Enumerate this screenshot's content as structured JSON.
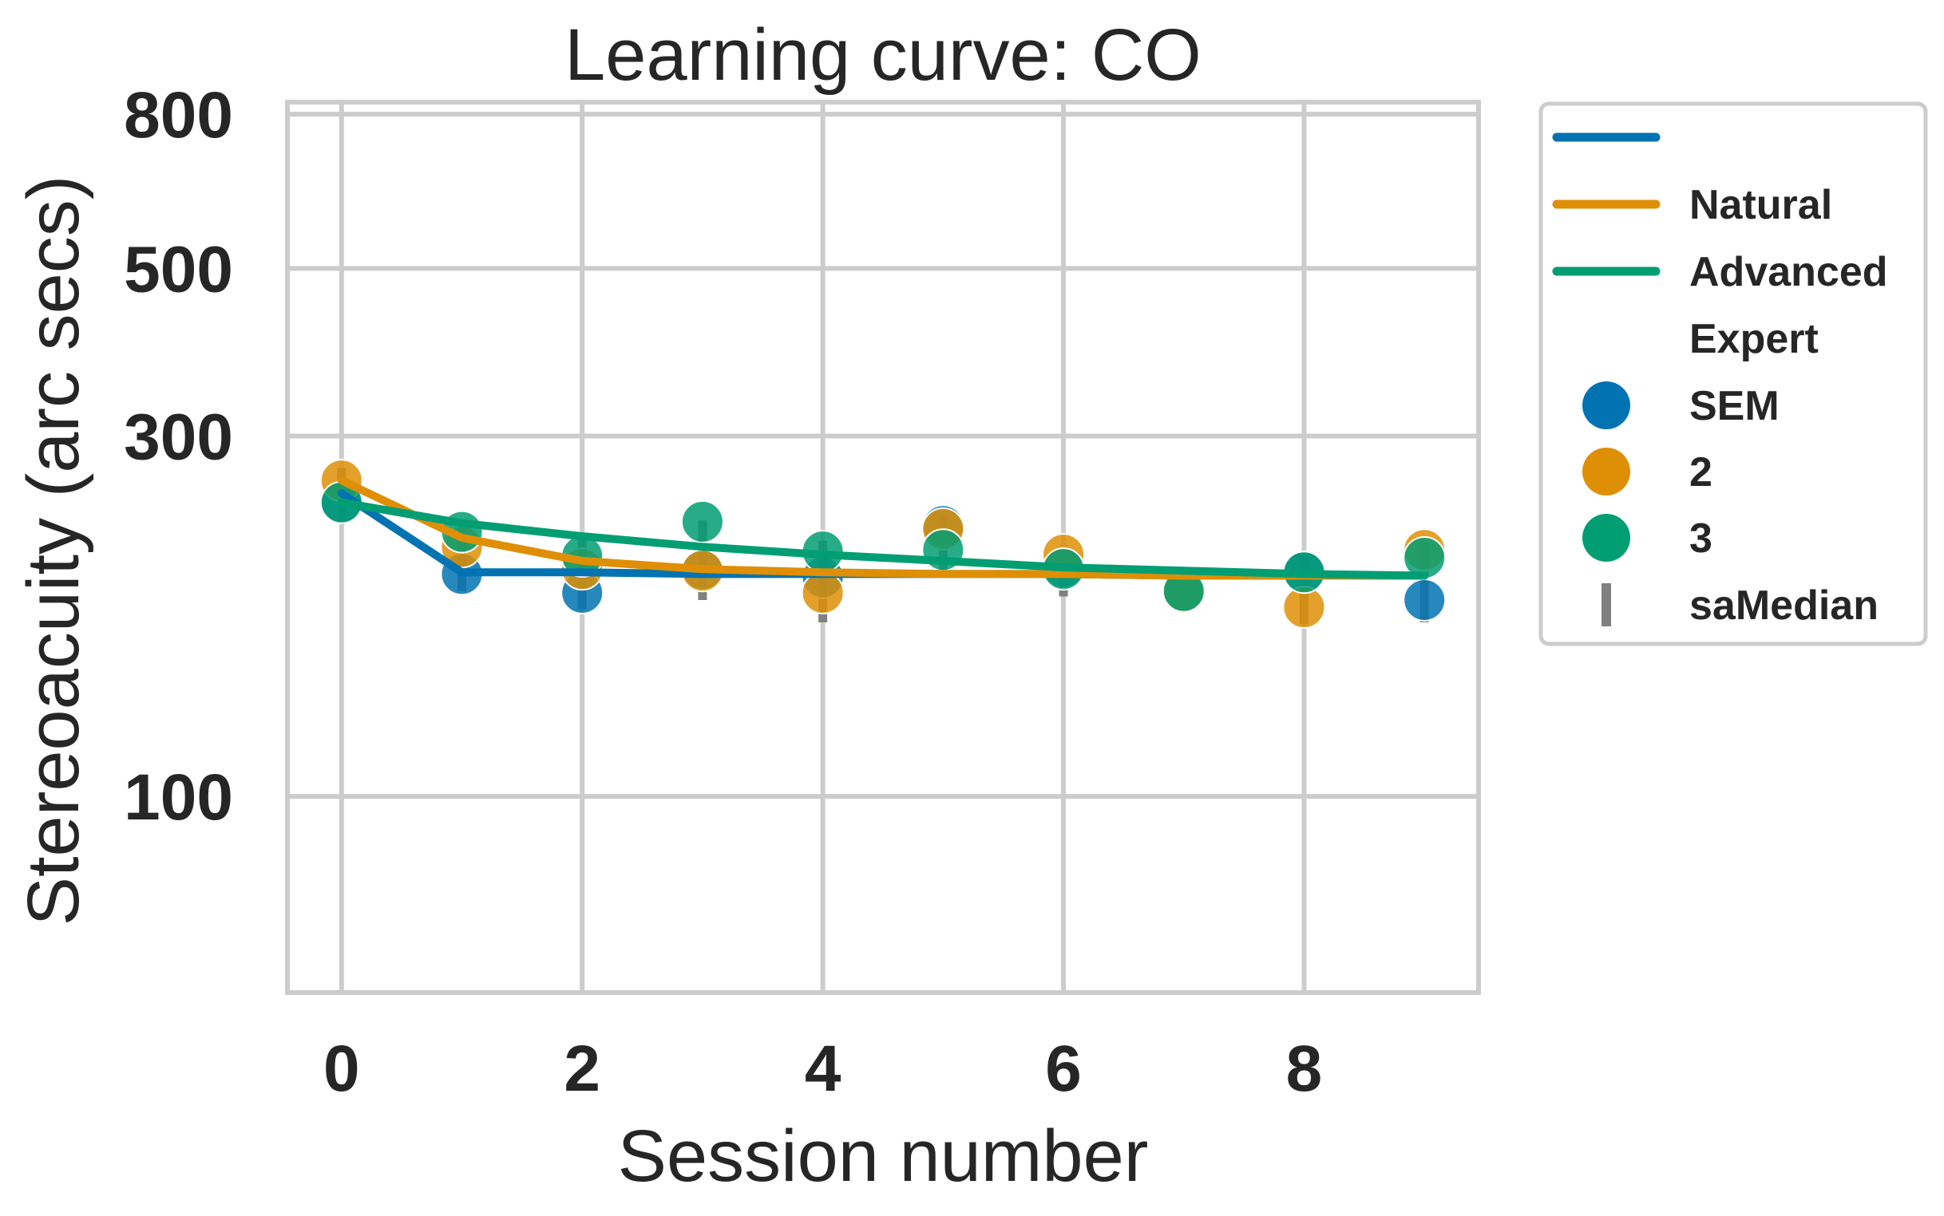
{
  "chart_data": {
    "type": "line",
    "title": "Learning curve: CO",
    "xlabel": "Session number",
    "ylabel": "Stereoacuity (arc secs)",
    "x_ticks": [
      0,
      2,
      4,
      6,
      8
    ],
    "x_tick_labels": [
      "0",
      "2",
      "4",
      "6",
      "8"
    ],
    "xlim": [
      -0.45,
      9.45
    ],
    "y_scale": "log",
    "ylim": [
      55,
      830
    ],
    "y_ticks": [
      100,
      300,
      500,
      800
    ],
    "y_tick_labels": [
      "100",
      "300",
      "500",
      "800"
    ],
    "grid": true,
    "legend_position": "outside-right",
    "legend": {
      "line_header": "",
      "lines": [
        {
          "label": "Natural",
          "color": "#de8f05"
        },
        {
          "label": "Advanced",
          "color": "#029e73"
        }
      ],
      "marker_header": "Expert",
      "markers": [
        {
          "label": "SEM",
          "color": "#0173b2"
        },
        {
          "label": "2",
          "color": "#de8f05"
        },
        {
          "label": "3",
          "color": "#029e73"
        }
      ],
      "errorbar_label": "saMedian",
      "errorbar_color": "#808080"
    },
    "x": [
      0,
      1,
      2,
      3,
      4,
      5,
      6,
      7,
      8,
      9
    ],
    "series": [
      {
        "color": "#0173b2",
        "points": [
          245,
          197,
          186,
          200,
          195,
          228,
          201,
          187,
          198,
          182
        ],
        "point_sessions": [
          0,
          1,
          2,
          3,
          4,
          5,
          6,
          7,
          8,
          9
        ],
        "fit": [
          252,
          198,
          198,
          197,
          197,
          197,
          197,
          196,
          196,
          196
        ]
      },
      {
        "color": "#de8f05",
        "points": [
          262,
          214,
          200,
          199,
          186,
          226,
          209,
          186,
          178,
          212
        ],
        "point_sessions": [
          0,
          1,
          2,
          3,
          4,
          5,
          6,
          7,
          8,
          9
        ],
        "fit": [
          262,
          220,
          205,
          200,
          198,
          197,
          197,
          196,
          196,
          196
        ]
      },
      {
        "color": "#029e73",
        "points": [
          245,
          224,
          208,
          231,
          211,
          212,
          200,
          187,
          198,
          207
        ],
        "point_sessions": [
          0,
          1,
          2,
          3,
          4,
          5,
          6,
          7,
          8,
          9
        ],
        "fit": [
          245,
          230,
          221,
          214,
          209,
          205,
          201,
          199,
          197,
          196
        ]
      }
    ],
    "error_bars": [
      {
        "x": 0,
        "low": 230,
        "high": 272
      },
      {
        "x": 1,
        "low": 187,
        "high": 232
      },
      {
        "x": 2,
        "low": 177,
        "high": 220
      },
      {
        "x": 3,
        "low": 182,
        "high": 232
      },
      {
        "x": 4,
        "low": 170,
        "high": 218
      },
      {
        "x": 5,
        "low": 195,
        "high": 235
      },
      {
        "x": 6,
        "low": 184,
        "high": 215
      },
      {
        "x": 7,
        "low": 175,
        "high": 200
      },
      {
        "x": 8,
        "low": 169,
        "high": 208
      },
      {
        "x": 9,
        "low": 170,
        "high": 217
      }
    ]
  }
}
